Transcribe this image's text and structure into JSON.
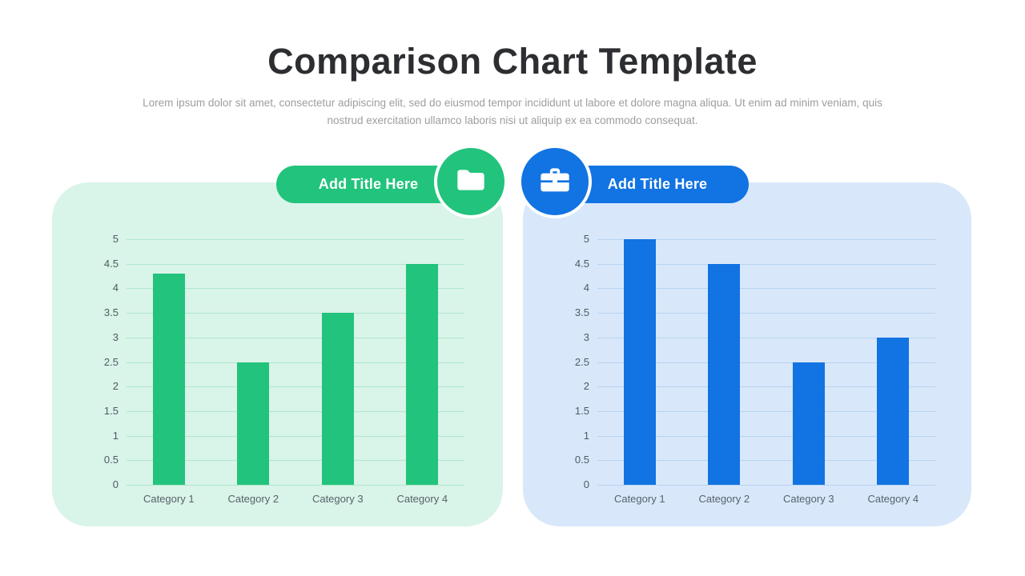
{
  "slide": {
    "title": "Comparison Chart Template",
    "subtitle": "Lorem ipsum dolor sit amet, consectetur adipiscing elit, sed do eiusmod tempor incididunt ut labore et dolore magna aliqua. Ut enim ad minim veniam, quis nostrud exercitation ullamco laboris nisi ut aliquip ex ea commodo consequat.",
    "background_color": "#FFFFFF",
    "title_color": "#2D2E32",
    "subtitle_color": "#9C9EA1"
  },
  "badges": [
    {
      "label": "Add Title Here",
      "icon": "folder-icon",
      "color": "#22C37C"
    },
    {
      "label": "Add Title Here",
      "icon": "briefcase-icon",
      "color": "#1273E2"
    }
  ],
  "chart_data": [
    {
      "type": "bar",
      "title": "Add Title Here",
      "categories": [
        "Category 1",
        "Category 2",
        "Category 3",
        "Category 4"
      ],
      "values": [
        4.3,
        2.5,
        3.5,
        4.5
      ],
      "xlabel": "",
      "ylabel": "",
      "ylim": [
        0,
        5
      ],
      "ytick_step": 0.5,
      "grid": true,
      "legend": false,
      "bar_color": "#22C37C",
      "panel_color": "#D9F4E8",
      "grid_color": "#AEE6CD",
      "tick_label_color": "#4E5A64"
    },
    {
      "type": "bar",
      "title": "Add Title Here",
      "categories": [
        "Category 1",
        "Category 2",
        "Category 3",
        "Category 4"
      ],
      "values": [
        5,
        4.5,
        2.5,
        3
      ],
      "xlabel": "",
      "ylabel": "",
      "ylim": [
        0,
        5
      ],
      "ytick_step": 0.5,
      "grid": true,
      "legend": false,
      "bar_color": "#1273E2",
      "panel_color": "#D8E8FA",
      "grid_color": "#B9D3F1",
      "tick_label_color": "#4E5A64"
    }
  ]
}
